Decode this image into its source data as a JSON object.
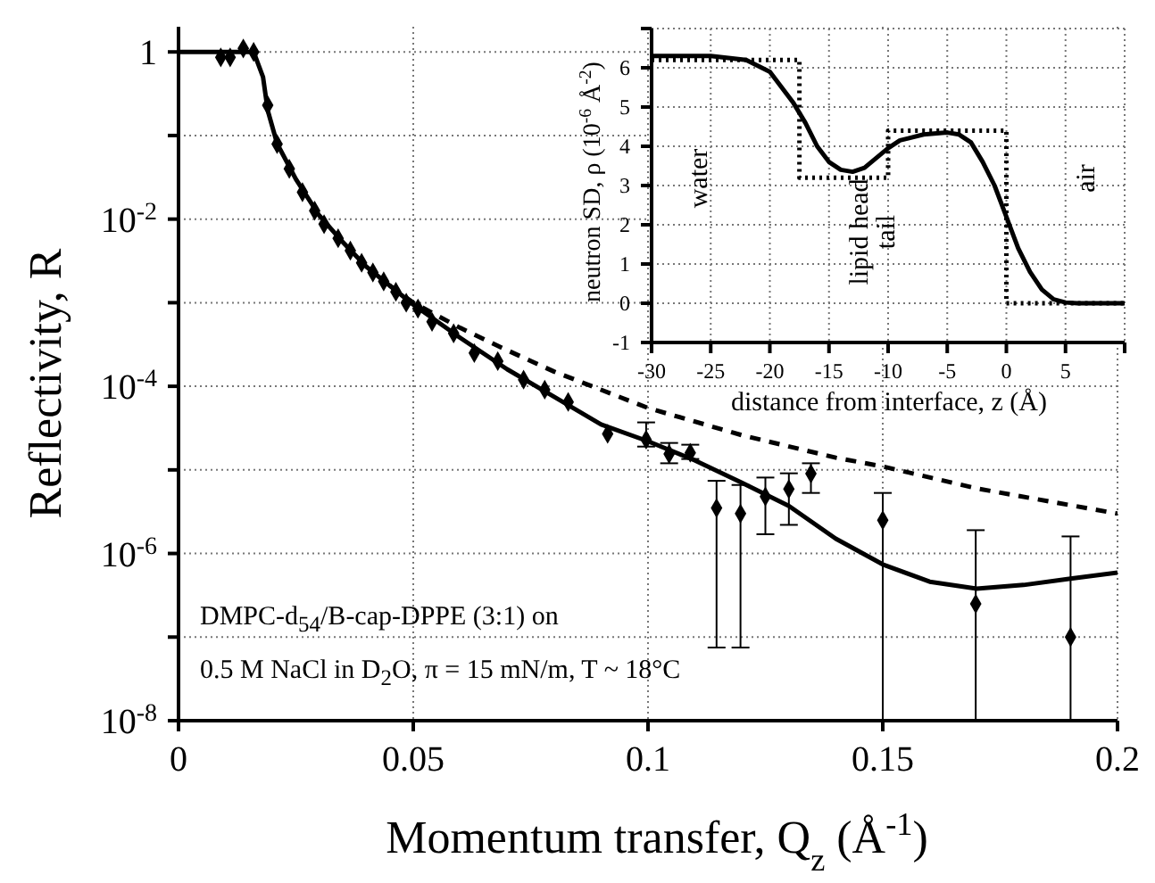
{
  "chart_data": [
    {
      "type": "scatter",
      "xlabel": "Momentum transfer, Q$_{z}$  (Å$^{-1}$)",
      "ylabel": "Reflectivity, R",
      "log": "y",
      "grid": true,
      "xlim": [
        0,
        0.2
      ],
      "xticks": [
        0,
        0.05,
        0.1,
        0.15,
        0.2
      ],
      "ylim": [
        1e-08,
        2
      ],
      "yticks": [
        {
          "value": 1e-08,
          "label": "10$^{-8}$"
        },
        {
          "value": 1e-07,
          "label": null
        },
        {
          "value": 1e-06,
          "label": "10$^{-6}$"
        },
        {
          "value": 1e-05,
          "label": null
        },
        {
          "value": 0.0001,
          "label": "10$^{-4}$"
        },
        {
          "value": 0.001,
          "label": null
        },
        {
          "value": 0.01,
          "label": "10$^{-2}$"
        },
        {
          "value": 0.1,
          "label": null
        },
        1
      ],
      "annotations": [
        "DMPC-d$_{54}$/B-cap-DPPE (3:1) on",
        "0.5 M NaCl in D$_{2}$O, π = 15 mN/m, T ~ 18°C"
      ],
      "series": [
        {
          "marker": "diamond",
          "color": "#000000",
          "x": [
            0.009,
            0.011,
            0.0138,
            0.016,
            0.019,
            0.021,
            0.0236,
            0.0264,
            0.029,
            0.031,
            0.034,
            0.0366,
            0.039,
            0.0414,
            0.0437,
            0.0463,
            0.0485,
            0.051,
            0.054,
            0.0586,
            0.063,
            0.068,
            0.0735,
            0.078,
            0.083,
            0.0914,
            0.0996,
            0.1045,
            0.109,
            0.1146,
            0.1197,
            0.125,
            0.13,
            0.1347,
            0.15,
            0.1698,
            0.19
          ],
          "values": [
            0.86,
            0.86,
            1.1,
            1.0,
            0.23,
            0.079,
            0.04,
            0.021,
            0.0126,
            0.0087,
            0.0059,
            0.0042,
            0.003,
            0.0023,
            0.0018,
            0.00135,
            0.001,
            0.00085,
            0.00059,
            0.00043,
            0.00025,
            0.0002,
            0.00012,
            9.1e-05,
            6.5e-05,
            2.7e-05,
            2.3e-05,
            1.55e-05,
            1.6e-05,
            3.5e-06,
            3e-06,
            4.8e-06,
            5.9e-06,
            9e-06,
            2.5e-06,
            2.5e-07,
            1e-07
          ],
          "errors": [
            null,
            null,
            null,
            null,
            null,
            null,
            null,
            null,
            null,
            null,
            null,
            null,
            null,
            null,
            null,
            null,
            null,
            null,
            null,
            null,
            null,
            null,
            null,
            null,
            null,
            null,
            [
              1.9e-05,
              3.7e-05
            ],
            [
              1.2e-05,
              2.1e-05
            ],
            [
              1.35e-05,
              2e-05
            ],
            [
              7.5e-08,
              7.4e-06
            ],
            [
              7.5e-08,
              6.6e-06
            ],
            [
              1.7e-06,
              8.1e-06
            ],
            [
              2.2e-06,
              9.1e-06
            ],
            [
              5.3e-06,
              1.2e-05
            ],
            [
              1e-08,
              5.3e-06
            ],
            [
              1e-08,
              1.9e-06
            ],
            [
              1e-08,
              1.6e-06
            ]
          ]
        },
        {
          "type": "line",
          "color": "#000000",
          "line_style": "solid",
          "x": [
            0,
            0.016,
            0.018,
            0.019,
            0.021,
            0.025,
            0.03,
            0.035,
            0.04,
            0.05,
            0.06,
            0.07,
            0.08,
            0.09,
            0.1,
            0.11,
            0.12,
            0.13,
            0.14,
            0.15,
            0.16,
            0.17,
            0.18,
            0.19,
            0.2
          ],
          "values": [
            1,
            1,
            0.5,
            0.2,
            0.08,
            0.03,
            0.011,
            0.0053,
            0.0027,
            0.00095,
            0.00038,
            0.00016,
            7.5e-05,
            3.5e-05,
            2.2e-05,
            1.3e-05,
            7e-06,
            3.7e-06,
            1.5e-06,
            7.4e-07,
            4.6e-07,
            3.8e-07,
            4.2e-07,
            5e-07,
            5.9e-07
          ]
        },
        {
          "type": "line",
          "color": "#000000",
          "line_style": "dashed",
          "x": [
            0.045,
            0.05,
            0.06,
            0.07,
            0.08,
            0.1,
            0.12,
            0.14,
            0.15,
            0.17,
            0.2
          ],
          "values": [
            0.0016,
            0.001,
            0.0005,
            0.00027,
            0.00015,
            5.5e-05,
            2.6e-05,
            1.4e-05,
            1.1e-05,
            6e-06,
            3e-06
          ]
        }
      ]
    },
    {
      "type": "line",
      "xlabel": "distance from interface, z   (Å)",
      "ylabel": "neutron SD, ρ  (10$^{-6}$ Å$^{-2}$)",
      "grid": true,
      "xlim": [
        -30,
        10
      ],
      "xticks": [
        -30,
        -25,
        -20,
        -15,
        -10,
        -5,
        0,
        5,
        {
          "value": 10,
          "label": null
        }
      ],
      "ylim": [
        -1,
        7
      ],
      "yticks": [
        -1,
        0,
        1,
        2,
        3,
        4,
        5,
        6,
        {
          "value": 7,
          "label": null
        }
      ],
      "annotations": [
        "water",
        "lipid head",
        "tail",
        "air"
      ],
      "series": [
        {
          "color": "#000000",
          "line_style": "solid",
          "x": [
            -30,
            -25,
            -22,
            -20,
            -18,
            -17,
            -16,
            -15,
            -14,
            -13,
            -12,
            -11,
            -10,
            -9,
            -7,
            -5,
            -4,
            -3,
            -2,
            -1,
            0,
            1,
            2,
            3,
            4,
            5,
            6,
            10
          ],
          "values": [
            6.3,
            6.3,
            6.2,
            5.9,
            5.1,
            4.6,
            4.0,
            3.6,
            3.4,
            3.35,
            3.45,
            3.7,
            3.95,
            4.15,
            4.3,
            4.35,
            4.3,
            4.1,
            3.6,
            3.0,
            2.2,
            1.4,
            0.8,
            0.35,
            0.1,
            0.02,
            0,
            0
          ]
        },
        {
          "color": "#000000",
          "line_style": "dotted",
          "x": [
            -30,
            -17.5,
            -17.5,
            -10,
            -10,
            0,
            0,
            10
          ],
          "values": [
            6.2,
            6.2,
            3.2,
            3.2,
            4.4,
            4.4,
            0,
            0
          ]
        }
      ]
    }
  ]
}
